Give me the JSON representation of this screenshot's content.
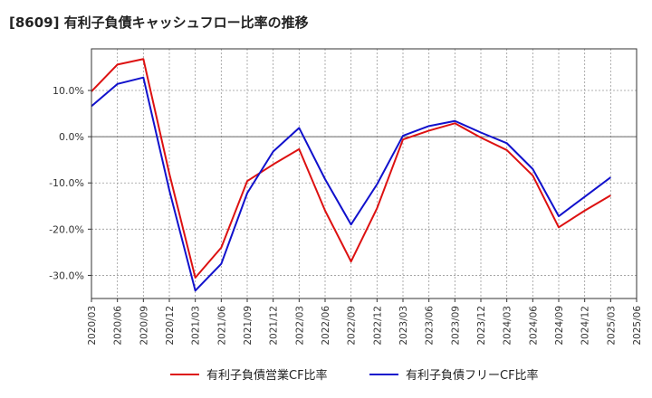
{
  "chart_data": {
    "type": "line",
    "title": "[8609]  有利子負債キャッシュフロー比率の推移",
    "x": [
      "2020/03",
      "2020/06",
      "2020/09",
      "2020/12",
      "2021/03",
      "2021/06",
      "2021/09",
      "2021/12",
      "2022/03",
      "2022/06",
      "2022/09",
      "2022/12",
      "2023/03",
      "2023/06",
      "2023/09",
      "2023/12",
      "2024/03",
      "2024/06",
      "2024/09",
      "2024/12",
      "2025/03",
      "2025/06"
    ],
    "ylim": [
      -35,
      19
    ],
    "yticks": [
      10,
      0,
      -10,
      -20,
      -30
    ],
    "ytick_labels": [
      "10.0%",
      "0.0%",
      "-10.0%",
      "-20.0%",
      "-30.0%"
    ],
    "grid": true,
    "legend_position": "bottom",
    "series": [
      {
        "name": "有利子負債営業CF比率",
        "color": "#dd1111",
        "values": [
          9.8,
          15.6,
          16.8,
          -8.0,
          -30.5,
          -24.0,
          -9.6,
          -6.0,
          -2.7,
          -16.0,
          -27.0,
          -15.5,
          -0.6,
          1.3,
          2.9,
          -0.2,
          -2.9,
          -8.4,
          -19.6,
          -16.0,
          -12.7,
          null
        ]
      },
      {
        "name": "有利子負債フリーCF比率",
        "color": "#1111cc",
        "values": [
          6.6,
          11.4,
          12.8,
          -11.6,
          -33.3,
          -27.5,
          -12.2,
          -3.2,
          1.9,
          -9.2,
          -19.0,
          -10.3,
          0.2,
          2.3,
          3.4,
          0.9,
          -1.4,
          -7.0,
          -17.2,
          -13.0,
          -8.8,
          null
        ]
      }
    ]
  }
}
